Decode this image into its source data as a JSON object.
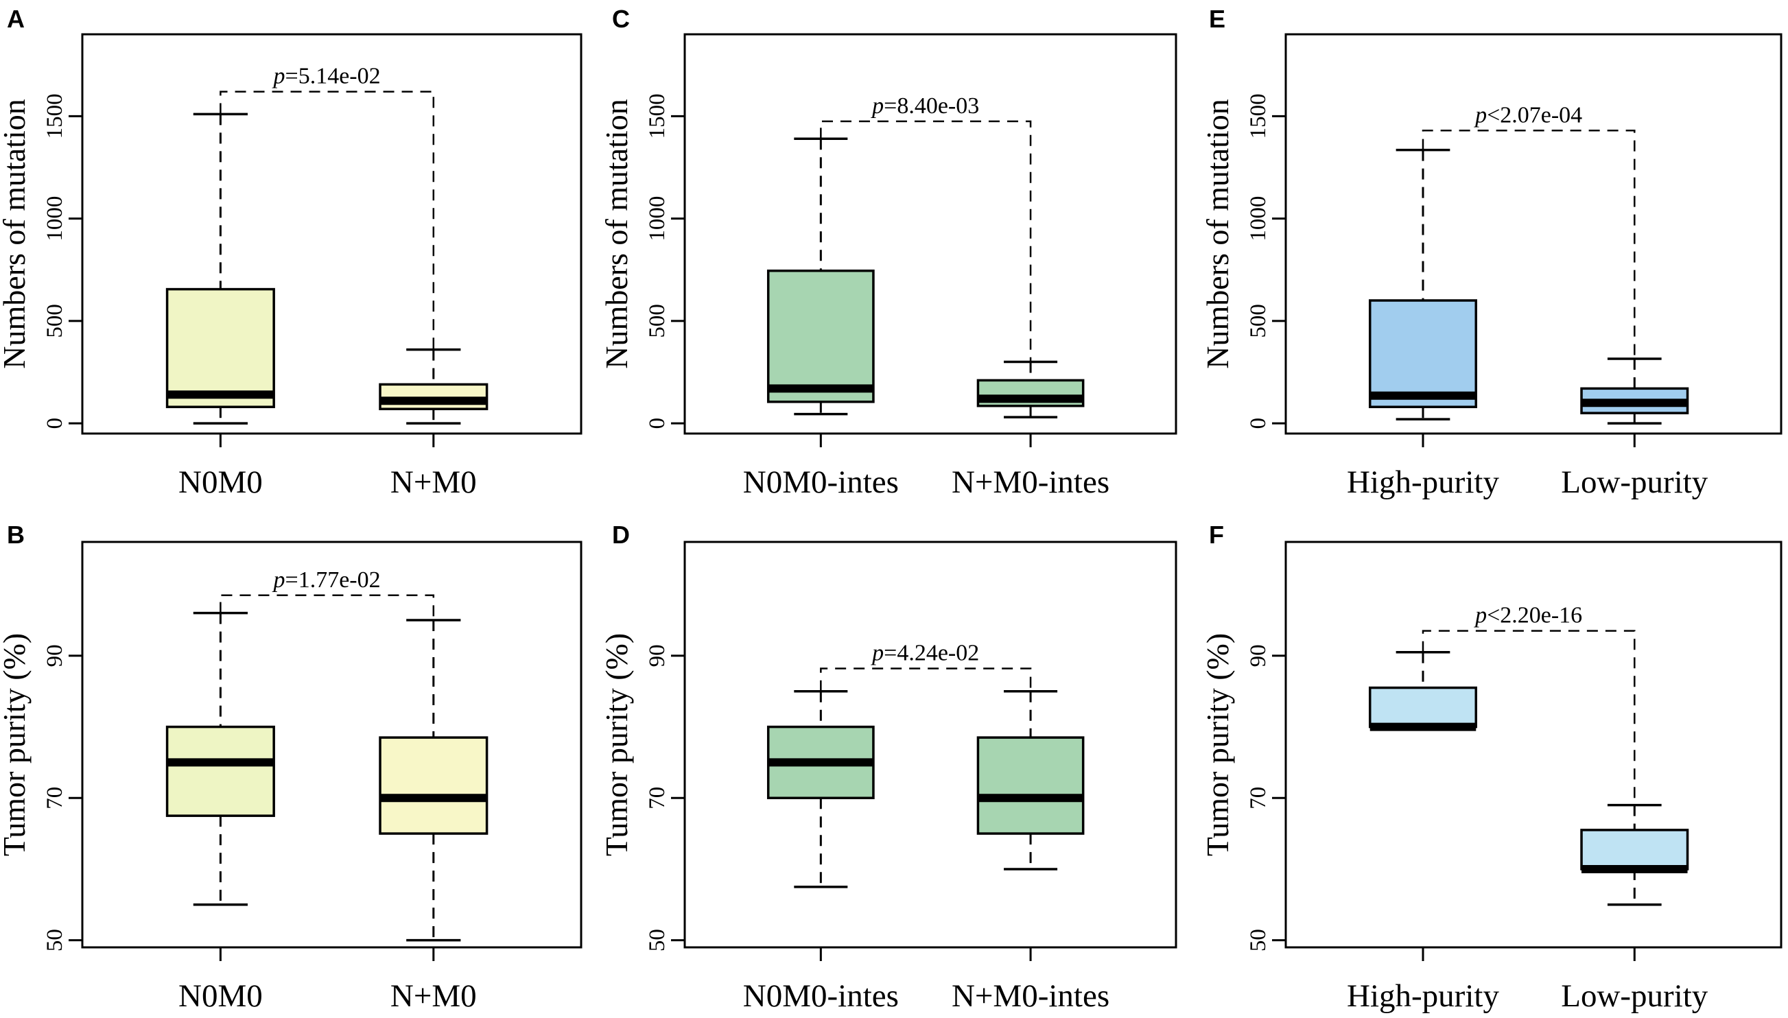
{
  "figure": {
    "panel_letters": [
      "A",
      "B",
      "C",
      "D",
      "E",
      "F"
    ]
  },
  "chart_data": [
    {
      "panel": "A",
      "type": "box",
      "title": "",
      "xlabel": "",
      "ylabel": "Numbers of mutation",
      "ylim": [
        -50,
        1900
      ],
      "yticks": [
        0,
        500,
        1000,
        1500
      ],
      "categories": [
        "N0M0",
        "N+M0"
      ],
      "boxes": [
        {
          "category": "N0M0",
          "whisker_low": 0,
          "q1": 80,
          "median": 140,
          "q3": 655,
          "whisker_high": 1510,
          "fill": "#f0f5c5"
        },
        {
          "category": "N+M0",
          "whisker_low": 0,
          "q1": 70,
          "median": 110,
          "q3": 190,
          "whisker_high": 360,
          "fill": "#f8f7c8"
        }
      ],
      "pvalue": {
        "prefix": "p",
        "text": "=5.14e-02",
        "y": 1620
      }
    },
    {
      "panel": "B",
      "type": "box",
      "title": "",
      "xlabel": "",
      "ylabel": "Tumor purity (%)",
      "ylim": [
        49,
        106
      ],
      "yticks": [
        50,
        70,
        90
      ],
      "categories": [
        "N0M0",
        "N+M0"
      ],
      "boxes": [
        {
          "category": "N0M0",
          "whisker_low": 55,
          "q1": 67.5,
          "median": 75,
          "q3": 80,
          "whisker_high": 96,
          "fill": "#eef5c4"
        },
        {
          "category": "N+M0",
          "whisker_low": 50,
          "q1": 65,
          "median": 70,
          "q3": 78.5,
          "whisker_high": 95,
          "fill": "#f8f7c8"
        }
      ],
      "pvalue": {
        "prefix": "p",
        "text": "=1.77e-02",
        "y": 98.5
      }
    },
    {
      "panel": "C",
      "type": "box",
      "title": "",
      "xlabel": "",
      "ylabel": "Numbers of mutation",
      "ylim": [
        -50,
        1900
      ],
      "yticks": [
        0,
        500,
        1000,
        1500
      ],
      "categories": [
        "N0M0-intes",
        "N+M0-intes"
      ],
      "boxes": [
        {
          "category": "N0M0-intes",
          "whisker_low": 45,
          "q1": 105,
          "median": 170,
          "q3": 745,
          "whisker_high": 1390,
          "fill": "#a7d5b1"
        },
        {
          "category": "N+M0-intes",
          "whisker_low": 30,
          "q1": 85,
          "median": 120,
          "q3": 210,
          "whisker_high": 300,
          "fill": "#a7d5b1"
        }
      ],
      "pvalue": {
        "prefix": "p",
        "text": "=8.40e-03",
        "y": 1475
      }
    },
    {
      "panel": "D",
      "type": "box",
      "title": "",
      "xlabel": "",
      "ylabel": "Tumor purity (%)",
      "ylim": [
        49,
        106
      ],
      "yticks": [
        50,
        70,
        90
      ],
      "categories": [
        "N0M0-intes",
        "N+M0-intes"
      ],
      "boxes": [
        {
          "category": "N0M0-intes",
          "whisker_low": 57.5,
          "q1": 70,
          "median": 75,
          "q3": 80,
          "whisker_high": 85,
          "fill": "#a7d5b1"
        },
        {
          "category": "N+M0-intes",
          "whisker_low": 60,
          "q1": 65,
          "median": 70,
          "q3": 78.5,
          "whisker_high": 85,
          "fill": "#a7d5b1"
        }
      ],
      "pvalue": {
        "prefix": "p",
        "text": "=4.24e-02",
        "y": 88.2
      }
    },
    {
      "panel": "E",
      "type": "box",
      "title": "",
      "xlabel": "",
      "ylabel": "Numbers of mutation",
      "ylim": [
        -50,
        1900
      ],
      "yticks": [
        0,
        500,
        1000,
        1500
      ],
      "categories": [
        "High-purity",
        "Low-purity"
      ],
      "boxes": [
        {
          "category": "High-purity",
          "whisker_low": 20,
          "q1": 80,
          "median": 135,
          "q3": 600,
          "whisker_high": 1335,
          "fill": "#a1cdee"
        },
        {
          "category": "Low-purity",
          "whisker_low": 0,
          "q1": 50,
          "median": 100,
          "q3": 170,
          "whisker_high": 315,
          "fill": "#a1cdee"
        }
      ],
      "pvalue": {
        "prefix": "p",
        "text": "<2.07e-04",
        "y": 1430
      }
    },
    {
      "panel": "F",
      "type": "box",
      "title": "",
      "xlabel": "",
      "ylabel": "Tumor purity (%)",
      "ylim": [
        49,
        106
      ],
      "yticks": [
        50,
        70,
        90
      ],
      "categories": [
        "High-purity",
        "Low-purity"
      ],
      "boxes": [
        {
          "category": "High-purity",
          "whisker_low": 80,
          "q1": 80,
          "median": 80,
          "q3": 85.5,
          "whisker_high": 90.5,
          "fill": "#bfe3f3"
        },
        {
          "category": "Low-purity",
          "whisker_low": 55,
          "q1": 60,
          "median": 60,
          "q3": 65.5,
          "whisker_high": 69,
          "fill": "#bfe3f3"
        }
      ],
      "pvalue": {
        "prefix": "p",
        "text": "<2.20e-16",
        "y": 93.5
      }
    }
  ]
}
